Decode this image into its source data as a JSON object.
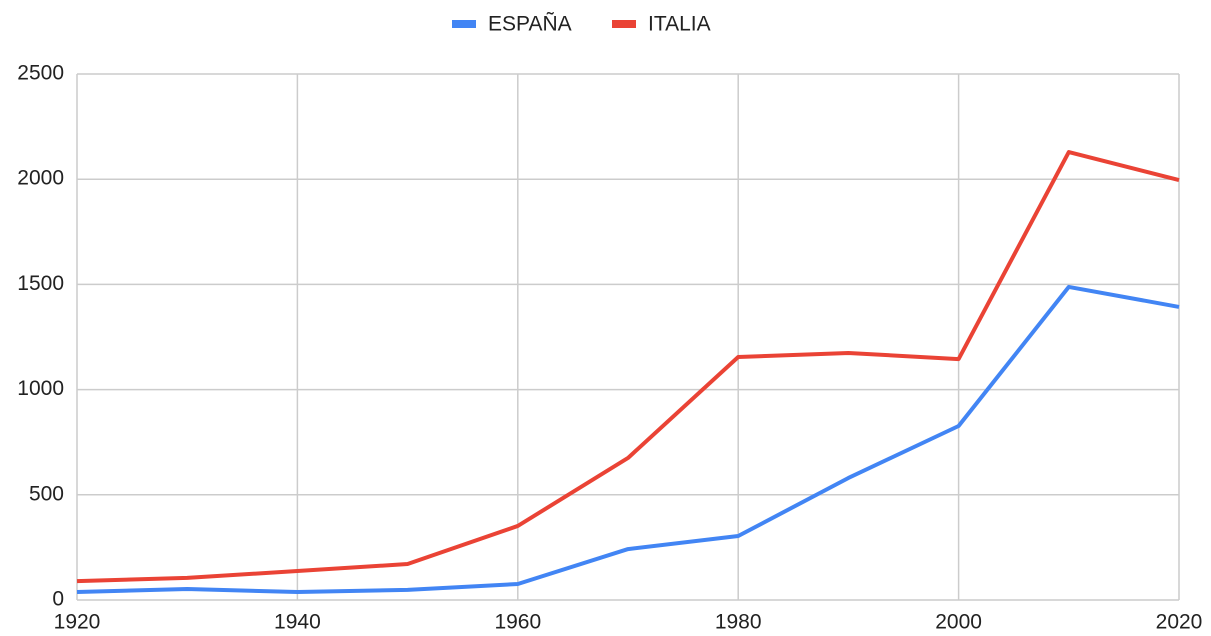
{
  "chart_data": {
    "type": "line",
    "x": [
      1920,
      1930,
      1940,
      1950,
      1960,
      1970,
      1980,
      1990,
      2000,
      2010,
      2020
    ],
    "series": [
      {
        "name": "ESPAÑA",
        "color": "#4285f4",
        "values": [
          38,
          52,
          38,
          48,
          76,
          242,
          304,
          580,
          827,
          1488,
          1393
        ]
      },
      {
        "name": "ITALIA",
        "color": "#ea4335",
        "values": [
          90,
          105,
          138,
          171,
          352,
          675,
          1155,
          1174,
          1145,
          2129,
          1996
        ]
      }
    ],
    "xlim": [
      1920,
      2020
    ],
    "xticks": [
      1920,
      1940,
      1960,
      1980,
      2000,
      2020
    ],
    "ylim": [
      0,
      2500
    ],
    "yticks": [
      0,
      500,
      1000,
      1500,
      2000,
      2500
    ],
    "grid": true,
    "legend": "top"
  }
}
